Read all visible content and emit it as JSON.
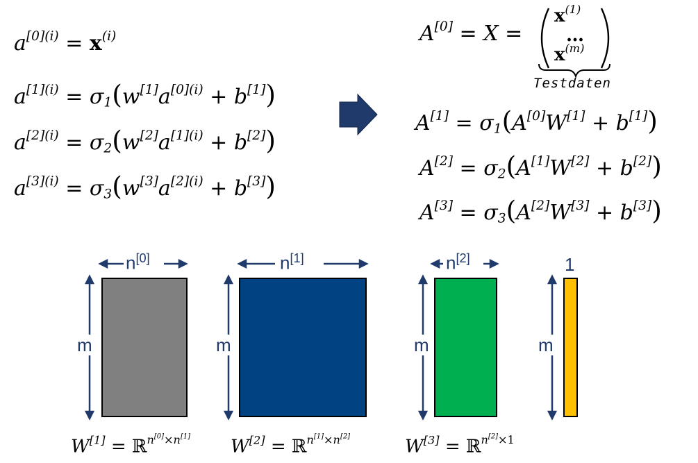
{
  "left_eq": [
    {
      "lhs": "a",
      "sup": "[0](i)",
      "rhs": "x",
      "rsup": "(i)"
    },
    {
      "lhs": "a",
      "sup": "[1](i)",
      "sigma_sub": "1",
      "w_sup": "[1]",
      "a_sup": "[0](i)",
      "b_sup": "[1]"
    },
    {
      "lhs": "a",
      "sup": "[2](i)",
      "sigma_sub": "2",
      "w_sup": "[2]",
      "a_sup": "[1](i)",
      "b_sup": "[2]"
    },
    {
      "lhs": "a",
      "sup": "[3](i)",
      "sigma_sub": "3",
      "w_sup": "[3]",
      "a_sup": "[2](i)",
      "b_sup": "[3]"
    }
  ],
  "right_eq": {
    "a0": {
      "lhs": "A",
      "sup": "[0]",
      "mid": "X",
      "x1_sup": "(1)",
      "dots": "…",
      "xm_sup": "(m)",
      "brace_label": "Testdaten"
    },
    "rows": [
      {
        "sup": "[1]",
        "sigma_sub": "1",
        "a_sup": "[0]",
        "w_sup": "[1]",
        "b_sup": "[1]"
      },
      {
        "sup": "[2]",
        "sigma_sub": "2",
        "a_sup": "[1]",
        "w_sup": "[2]",
        "b_sup": "[2]"
      },
      {
        "sup": "[3]",
        "sigma_sub": "3",
        "a_sup": "[2]",
        "w_sup": "[3]",
        "b_sup": "[3]"
      }
    ]
  },
  "matrices": [
    {
      "width_label": "n",
      "width_sup": "[0]",
      "height_label": "m",
      "color": "#808080"
    },
    {
      "width_label": "n",
      "width_sup": "[1]",
      "height_label": "m",
      "color": "#004282"
    },
    {
      "width_label": "n",
      "width_sup": "[2]",
      "height_label": "m",
      "color": "#00b050"
    },
    {
      "width_label": "1",
      "height_label": "m",
      "color": "#ffc000"
    }
  ],
  "bottom_eq": [
    {
      "w": "W",
      "w_sup": "[1]",
      "eq": "=",
      "R": "ℝ",
      "exp_a": "n",
      "exp_a_sup": "[0]",
      "times": "×",
      "exp_b": "n",
      "exp_b_sup": "[1]"
    },
    {
      "w": "W",
      "w_sup": "[2]",
      "eq": "=",
      "R": "ℝ",
      "exp_a": "n",
      "exp_a_sup": "[1]",
      "times": "×",
      "exp_b": "n",
      "exp_b_sup": "[2]"
    },
    {
      "w": "W",
      "w_sup": "[3]",
      "eq": "=",
      "R": "ℝ",
      "exp_a": "n",
      "exp_a_sup": "[2]",
      "times": "×",
      "exp_b": "1"
    }
  ],
  "colors": {
    "arrow_fill": "#1f3a6b",
    "label_color": "#1f3a6b"
  }
}
